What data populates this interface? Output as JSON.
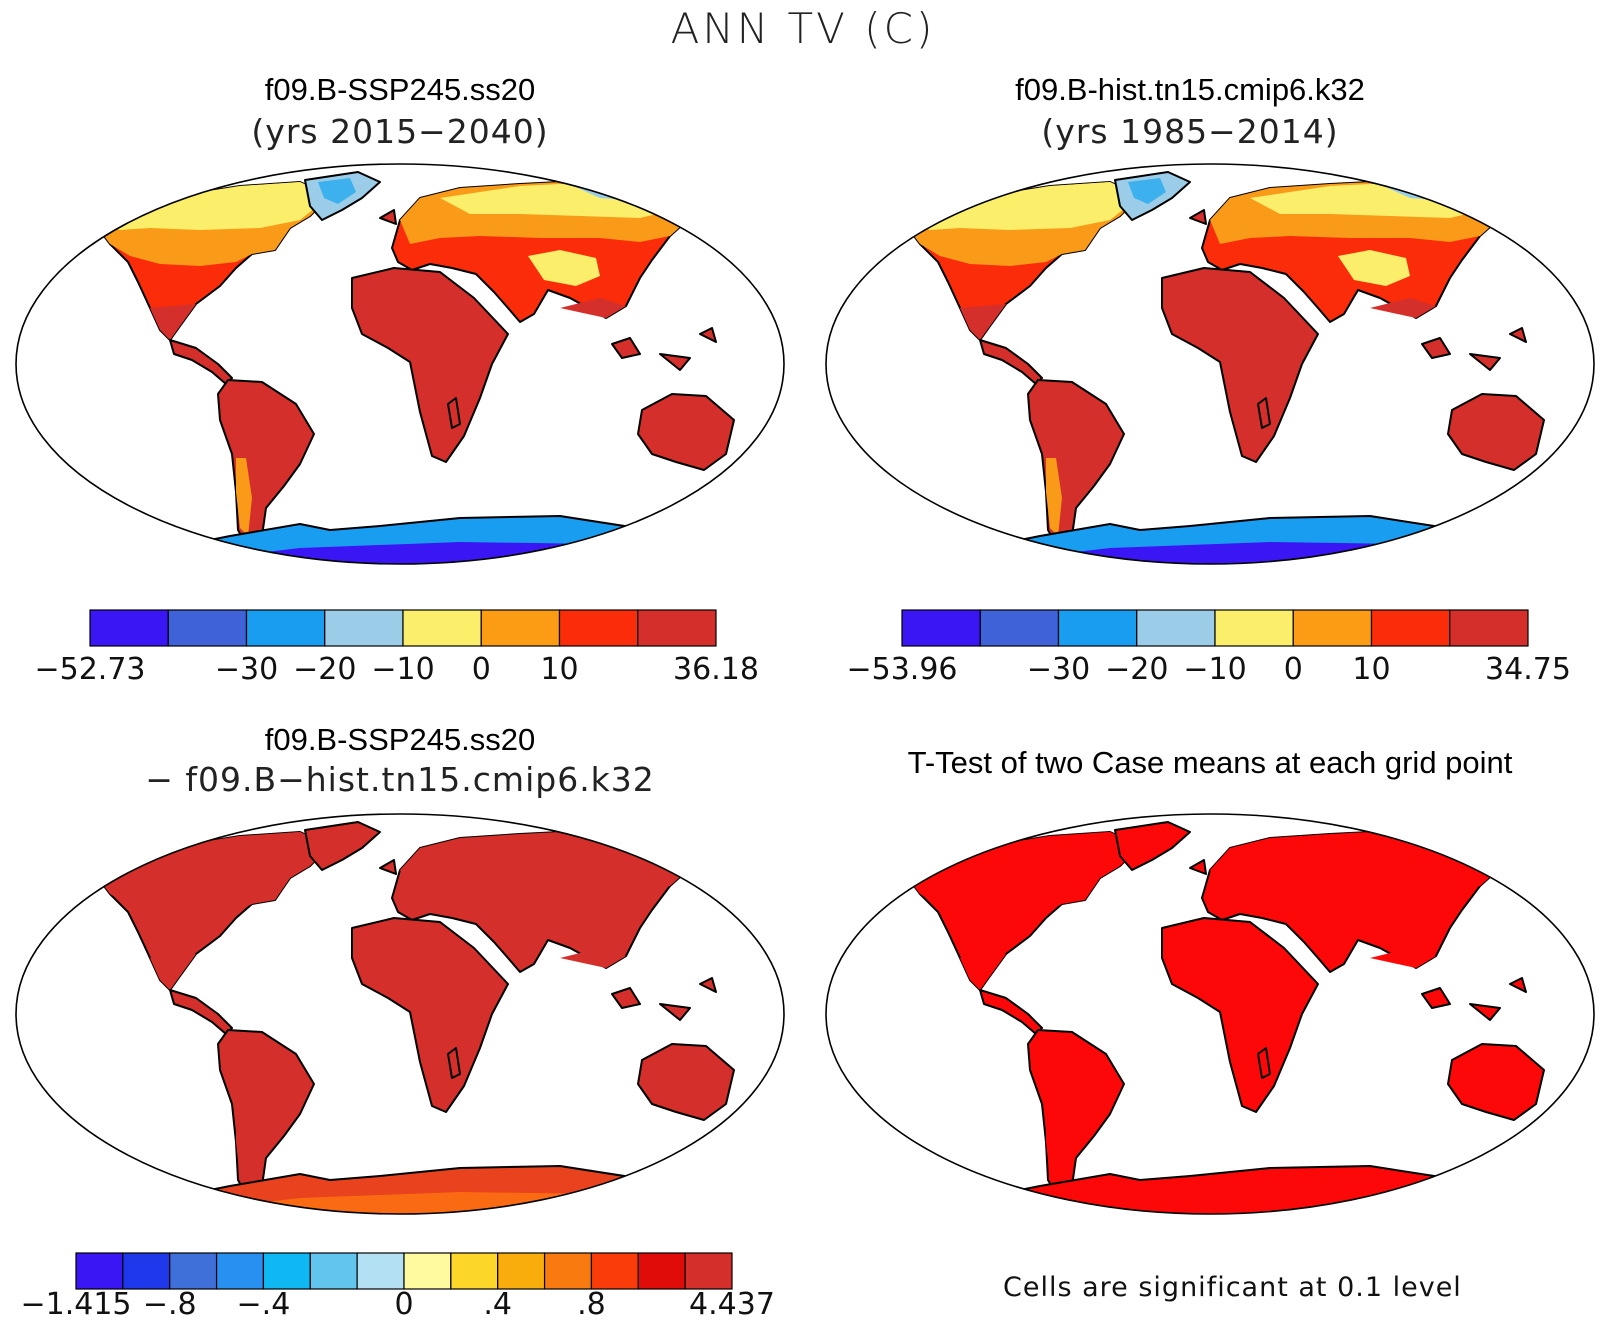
{
  "figure": {
    "title": "ANN TV (C)"
  },
  "panels": [
    {
      "id": "top-left",
      "title": "f09.B-SSP245.ss20",
      "subtitle": "(yrs 2015−2040)",
      "colorbar": {
        "colors": [
          "#3b16f5",
          "#3f62d8",
          "#199df0",
          "#9bcde9",
          "#fbee6a",
          "#fb9c14",
          "#fa2c0a",
          "#d42f2b"
        ],
        "labels": [
          "−52.73",
          "−30",
          "−20",
          "−10",
          "0",
          "10",
          "36.18"
        ],
        "label_positions": [
          0,
          2,
          3,
          4,
          5,
          6,
          8
        ]
      },
      "palette": {
        "arctic": "#f3bc4a",
        "north": "#fbee6a",
        "mid": "#f99a18",
        "warm": "#fa2c0a",
        "tropic": "#d42f2b",
        "greenland": "#9bcde9",
        "greenland_core": "#3cb1ee",
        "antarctica": "#199df0",
        "antarctica_core": "#3b16f5",
        "tibet": "#fbee6a"
      }
    },
    {
      "id": "top-right",
      "title": "f09.B-hist.tn15.cmip6.k32",
      "subtitle": "(yrs 1985−2014)",
      "colorbar": {
        "colors": [
          "#3b16f5",
          "#3f62d8",
          "#199df0",
          "#9bcde9",
          "#fbee6a",
          "#fb9c14",
          "#fa2c0a",
          "#d42f2b"
        ],
        "labels": [
          "−53.96",
          "−30",
          "−20",
          "−10",
          "0",
          "10",
          "34.75"
        ],
        "label_positions": [
          0,
          2,
          3,
          4,
          5,
          6,
          8
        ]
      },
      "palette": {
        "arctic": "#f3bc4a",
        "north": "#fbee6a",
        "mid": "#f99a18",
        "warm": "#fa2c0a",
        "tropic": "#d42f2b",
        "greenland": "#9bcde9",
        "greenland_core": "#3cb1ee",
        "antarctica": "#199df0",
        "antarctica_core": "#3b16f5",
        "tibet": "#fbee6a"
      }
    },
    {
      "id": "bottom-left",
      "title": "f09.B-SSP245.ss20",
      "subtitle": "− f09.B−hist.tn15.cmip6.k32",
      "colorbar": {
        "colors": [
          "#3b16f5",
          "#1f38ec",
          "#3f6fd8",
          "#2890f0",
          "#0fb8f3",
          "#62c5ee",
          "#b3e0f3",
          "#fff9a0",
          "#fcd628",
          "#f9ad0d",
          "#f97b10",
          "#fa3c0a",
          "#e00c0a",
          "#d42f2b"
        ],
        "labels": [
          "−1.415",
          "−.8",
          "−.4",
          "0",
          ".4",
          ".8",
          "4.437"
        ],
        "label_positions": [
          0,
          2,
          4,
          7,
          9,
          11,
          14
        ]
      },
      "palette": {
        "arctic": "#d42f2b",
        "north": "#d42f2b",
        "mid": "#d42f2b",
        "warm": "#d42f2b",
        "tropic": "#d42f2b",
        "greenland": "#d42f2b",
        "greenland_core": "#d42f2b",
        "antarctica": "#e8421e",
        "antarctica_core": "#fa6a12",
        "tibet": "#d42f2b"
      }
    },
    {
      "id": "bottom-right",
      "title": "T-Test of two Case means at each grid point",
      "footnote": "Cells are significant at 0.1 level",
      "palette": {
        "arctic": "#fd0808",
        "north": "#fd0808",
        "mid": "#fd0808",
        "warm": "#fd0808",
        "tropic": "#fd0808",
        "greenland": "#fd0808",
        "greenland_core": "#fd0808",
        "antarctica": "#fd0808",
        "antarctica_core": "#fd0808",
        "tibet": "#fd0808"
      }
    }
  ]
}
